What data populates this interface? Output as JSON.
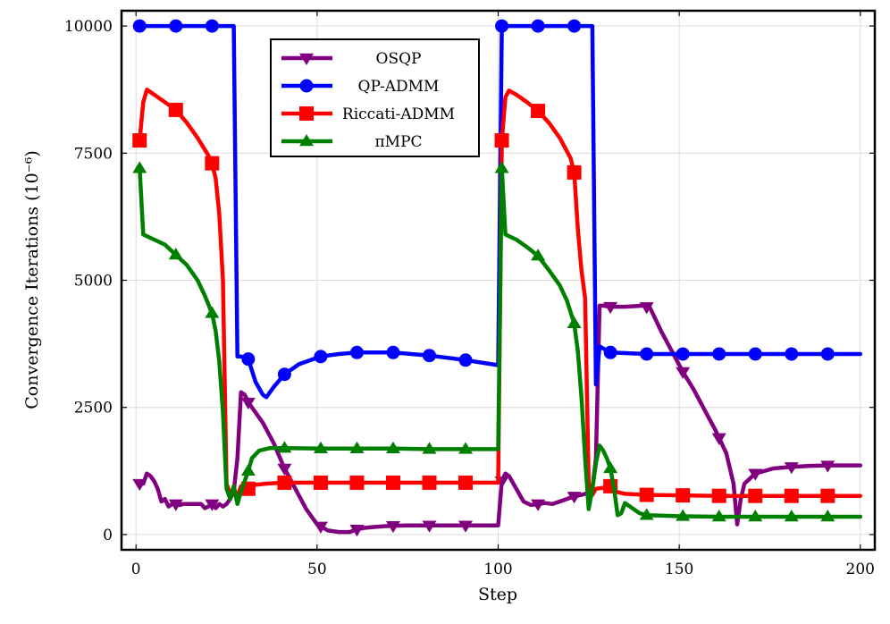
{
  "chart_data": {
    "type": "line",
    "title": "",
    "xlabel": "Step",
    "ylabel": "Convergence Iterations (10⁻⁶)",
    "xlim": [
      -4,
      204
    ],
    "ylim": [
      -300,
      10300
    ],
    "xticks": [
      0,
      50,
      100,
      150,
      200
    ],
    "xtick_labels": [
      "0",
      "50",
      "100",
      "150",
      "200"
    ],
    "yticks": [
      0,
      2500,
      5000,
      7500,
      10000
    ],
    "ytick_labels": [
      "0",
      "2500",
      "5000",
      "7500",
      "10000"
    ],
    "grid": true,
    "legend_position": "top-center",
    "series": [
      {
        "name": "OSQP",
        "color": "#800080",
        "marker": "triangle-down",
        "points": [
          [
            1,
            1000
          ],
          [
            2,
            1000
          ],
          [
            3,
            1200
          ],
          [
            4,
            1150
          ],
          [
            5,
            1050
          ],
          [
            6,
            900
          ],
          [
            7,
            650
          ],
          [
            8,
            700
          ],
          [
            9,
            550
          ],
          [
            10,
            600
          ],
          [
            11,
            600
          ],
          [
            12,
            580
          ],
          [
            13,
            600
          ],
          [
            14,
            600
          ],
          [
            15,
            600
          ],
          [
            16,
            600
          ],
          [
            17,
            600
          ],
          [
            18,
            600
          ],
          [
            19,
            520
          ],
          [
            20,
            550
          ],
          [
            21,
            600
          ],
          [
            22,
            520
          ],
          [
            23,
            600
          ],
          [
            24,
            550
          ],
          [
            25,
            600
          ],
          [
            26,
            700
          ],
          [
            27,
            850
          ],
          [
            28,
            1500
          ],
          [
            29,
            2800
          ],
          [
            30,
            2750
          ],
          [
            31,
            2600
          ],
          [
            32,
            2500
          ],
          [
            35,
            2200
          ],
          [
            38,
            1800
          ],
          [
            41,
            1300
          ],
          [
            44,
            900
          ],
          [
            47,
            500
          ],
          [
            50,
            200
          ],
          [
            53,
            80
          ],
          [
            56,
            50
          ],
          [
            59,
            50
          ],
          [
            61,
            100
          ],
          [
            63,
            130
          ],
          [
            66,
            150
          ],
          [
            70,
            170
          ],
          [
            75,
            180
          ],
          [
            80,
            180
          ],
          [
            85,
            180
          ],
          [
            90,
            180
          ],
          [
            95,
            180
          ],
          [
            100,
            180
          ],
          [
            101,
            1050
          ],
          [
            102,
            1200
          ],
          [
            103,
            1150
          ],
          [
            105,
            900
          ],
          [
            107,
            650
          ],
          [
            109,
            580
          ],
          [
            111,
            600
          ],
          [
            113,
            620
          ],
          [
            115,
            600
          ],
          [
            117,
            650
          ],
          [
            119,
            700
          ],
          [
            121,
            750
          ],
          [
            123,
            780
          ],
          [
            125,
            820
          ],
          [
            126,
            900
          ],
          [
            127,
            1500
          ],
          [
            128,
            4500
          ],
          [
            129,
            4500
          ],
          [
            131,
            4480
          ],
          [
            135,
            4480
          ],
          [
            140,
            4500
          ],
          [
            142,
            4450
          ],
          [
            145,
            4000
          ],
          [
            148,
            3600
          ],
          [
            151,
            3200
          ],
          [
            154,
            2850
          ],
          [
            157,
            2450
          ],
          [
            160,
            2050
          ],
          [
            163,
            1600
          ],
          [
            165,
            1000
          ],
          [
            166,
            200
          ],
          [
            167,
            700
          ],
          [
            168,
            1000
          ],
          [
            171,
            1200
          ],
          [
            176,
            1300
          ],
          [
            181,
            1330
          ],
          [
            186,
            1350
          ],
          [
            191,
            1360
          ],
          [
            196,
            1360
          ],
          [
            200,
            1360
          ]
        ],
        "marker_x": [
          1,
          11,
          21,
          31,
          41,
          51,
          61,
          71,
          81,
          91,
          101,
          111,
          121,
          131,
          141,
          151,
          161,
          171,
          181,
          191
        ]
      },
      {
        "name": "QP-ADMM",
        "color": "#0000ff",
        "marker": "circle",
        "points": [
          [
            1,
            10000
          ],
          [
            11,
            10000
          ],
          [
            21,
            10000
          ],
          [
            27,
            10000
          ],
          [
            28,
            3500
          ],
          [
            29,
            3500
          ],
          [
            31,
            3450
          ],
          [
            33,
            3000
          ],
          [
            35,
            2750
          ],
          [
            36,
            2700
          ],
          [
            38,
            2900
          ],
          [
            41,
            3150
          ],
          [
            45,
            3350
          ],
          [
            51,
            3500
          ],
          [
            56,
            3550
          ],
          [
            61,
            3580
          ],
          [
            71,
            3580
          ],
          [
            81,
            3520
          ],
          [
            91,
            3430
          ],
          [
            100,
            3330
          ],
          [
            101,
            10000
          ],
          [
            111,
            10000
          ],
          [
            121,
            10000
          ],
          [
            126,
            10000
          ],
          [
            127,
            2950
          ],
          [
            128,
            3700
          ],
          [
            131,
            3580
          ],
          [
            141,
            3550
          ],
          [
            151,
            3550
          ],
          [
            161,
            3550
          ],
          [
            171,
            3550
          ],
          [
            181,
            3550
          ],
          [
            191,
            3550
          ],
          [
            200,
            3550
          ]
        ],
        "marker_x": [
          1,
          11,
          21,
          31,
          41,
          51,
          61,
          71,
          81,
          91,
          101,
          111,
          121,
          131,
          141,
          151,
          161,
          171,
          181,
          191
        ]
      },
      {
        "name": "Riccati-ADMM",
        "color": "#ff0000",
        "marker": "square",
        "points": [
          [
            1,
            7750
          ],
          [
            2,
            8500
          ],
          [
            3,
            8750
          ],
          [
            4,
            8700
          ],
          [
            6,
            8600
          ],
          [
            9,
            8450
          ],
          [
            11,
            8350
          ],
          [
            14,
            8100
          ],
          [
            17,
            7800
          ],
          [
            20,
            7450
          ],
          [
            21,
            7300
          ],
          [
            22,
            7000
          ],
          [
            23,
            6300
          ],
          [
            24,
            5000
          ],
          [
            25,
            1000
          ],
          [
            26,
            800
          ],
          [
            27,
            900
          ],
          [
            28,
            750
          ],
          [
            29,
            950
          ],
          [
            31,
            900
          ],
          [
            33,
            980
          ],
          [
            36,
            1000
          ],
          [
            41,
            1020
          ],
          [
            51,
            1020
          ],
          [
            61,
            1020
          ],
          [
            71,
            1020
          ],
          [
            81,
            1020
          ],
          [
            91,
            1020
          ],
          [
            100,
            1020
          ],
          [
            101,
            7750
          ],
          [
            102,
            8600
          ],
          [
            103,
            8730
          ],
          [
            105,
            8650
          ],
          [
            108,
            8500
          ],
          [
            111,
            8330
          ],
          [
            114,
            8100
          ],
          [
            117,
            7800
          ],
          [
            120,
            7400
          ],
          [
            121,
            7120
          ],
          [
            122,
            6000
          ],
          [
            123,
            5200
          ],
          [
            124,
            4650
          ],
          [
            125,
            1000
          ],
          [
            126,
            780
          ],
          [
            127,
            900
          ],
          [
            129,
            920
          ],
          [
            131,
            950
          ],
          [
            132,
            850
          ],
          [
            135,
            800
          ],
          [
            141,
            780
          ],
          [
            151,
            770
          ],
          [
            161,
            760
          ],
          [
            171,
            760
          ],
          [
            181,
            760
          ],
          [
            191,
            760
          ],
          [
            200,
            760
          ]
        ],
        "marker_x": [
          1,
          11,
          21,
          31,
          41,
          51,
          61,
          71,
          81,
          91,
          101,
          111,
          121,
          131,
          141,
          151,
          161,
          171,
          181,
          191
        ]
      },
      {
        "name": "πMPC",
        "color": "#008000",
        "marker": "triangle-up",
        "points": [
          [
            1,
            7200
          ],
          [
            2,
            5900
          ],
          [
            5,
            5800
          ],
          [
            8,
            5700
          ],
          [
            11,
            5500
          ],
          [
            14,
            5300
          ],
          [
            17,
            5000
          ],
          [
            19,
            4700
          ],
          [
            21,
            4350
          ],
          [
            22,
            4000
          ],
          [
            23,
            3400
          ],
          [
            24,
            2400
          ],
          [
            25,
            900
          ],
          [
            26,
            700
          ],
          [
            27,
            950
          ],
          [
            28,
            600
          ],
          [
            29,
            850
          ],
          [
            31,
            1250
          ],
          [
            32,
            1500
          ],
          [
            34,
            1650
          ],
          [
            37,
            1700
          ],
          [
            41,
            1700
          ],
          [
            51,
            1690
          ],
          [
            61,
            1690
          ],
          [
            71,
            1690
          ],
          [
            81,
            1680
          ],
          [
            91,
            1680
          ],
          [
            100,
            1680
          ],
          [
            101,
            7200
          ],
          [
            102,
            5900
          ],
          [
            105,
            5800
          ],
          [
            108,
            5650
          ],
          [
            111,
            5480
          ],
          [
            114,
            5200
          ],
          [
            117,
            4900
          ],
          [
            119,
            4600
          ],
          [
            121,
            4150
          ],
          [
            122,
            3600
          ],
          [
            123,
            2700
          ],
          [
            124,
            1500
          ],
          [
            125,
            500
          ],
          [
            126,
            900
          ],
          [
            127,
            1400
          ],
          [
            128,
            1750
          ],
          [
            129,
            1650
          ],
          [
            130,
            1500
          ],
          [
            131,
            1300
          ],
          [
            132,
            900
          ],
          [
            133,
            380
          ],
          [
            134,
            420
          ],
          [
            135,
            620
          ],
          [
            137,
            520
          ],
          [
            139,
            420
          ],
          [
            141,
            380
          ],
          [
            151,
            360
          ],
          [
            161,
            350
          ],
          [
            171,
            350
          ],
          [
            181,
            350
          ],
          [
            191,
            350
          ],
          [
            200,
            350
          ]
        ],
        "marker_x": [
          1,
          11,
          21,
          31,
          41,
          51,
          61,
          71,
          81,
          91,
          101,
          111,
          121,
          131,
          141,
          151,
          161,
          171,
          181,
          191
        ]
      }
    ]
  }
}
